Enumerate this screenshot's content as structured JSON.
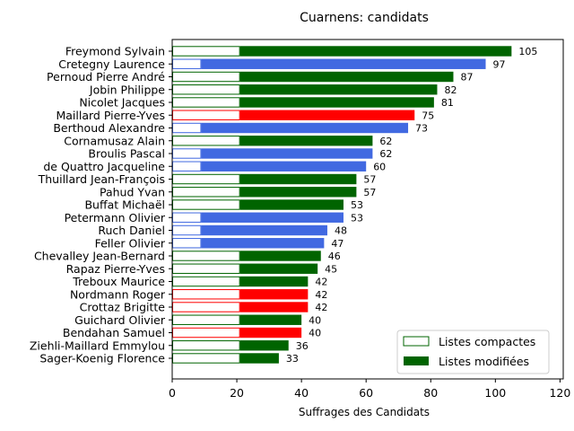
{
  "chart_data": {
    "type": "bar",
    "orientation": "horizontal",
    "title": "Cuarnens: candidats",
    "xlabel": "Suffrages des Candidats",
    "ylabel": "",
    "xlim": [
      0,
      121
    ],
    "xticks": [
      "0",
      "20",
      "40",
      "60",
      "80",
      "100",
      "120"
    ],
    "xtick_values": [
      0,
      20,
      40,
      60,
      80,
      100,
      120
    ],
    "legend_position": "bottom-right",
    "legend": [
      {
        "label": "Listes compactes",
        "style": "outline",
        "color": "#006400"
      },
      {
        "label": "Listes modifiées",
        "style": "filled",
        "color": "#006400"
      }
    ],
    "categories": [
      "Freymond Sylvain",
      "Cretegny Laurence",
      "Pernoud Pierre André",
      "Jobin Philippe",
      "Nicolet Jacques",
      "Maillard Pierre-Yves",
      "Berthoud Alexandre",
      "Cornamusaz Alain",
      "Broulis Pascal",
      "de Quattro Jacqueline",
      "Thuillard Jean-François",
      "Pahud Yvan",
      "Buffat Michaël",
      "Petermann Olivier",
      "Ruch Daniel",
      "Feller Olivier",
      "Chevalley Jean-Bernard",
      "Rapaz Pierre-Yves",
      "Treboux Maurice",
      "Nordmann Roger",
      "Crottaz Brigitte",
      "Guichard Olivier",
      "Bendahan Samuel",
      "Ziehli-Maillard Emmylou",
      "Sager-Koenig Florence"
    ],
    "totals": [
      105,
      97,
      87,
      82,
      81,
      75,
      73,
      62,
      62,
      60,
      57,
      57,
      53,
      53,
      48,
      47,
      46,
      45,
      42,
      42,
      42,
      40,
      40,
      36,
      33
    ],
    "compact": [
      21,
      9,
      21,
      21,
      21,
      21,
      9,
      21,
      9,
      9,
      21,
      21,
      21,
      9,
      9,
      9,
      21,
      21,
      21,
      21,
      21,
      21,
      21,
      21,
      21
    ],
    "colors": [
      "#006400",
      "#4169e1",
      "#006400",
      "#006400",
      "#006400",
      "#ff0000",
      "#4169e1",
      "#006400",
      "#4169e1",
      "#4169e1",
      "#006400",
      "#006400",
      "#006400",
      "#4169e1",
      "#4169e1",
      "#4169e1",
      "#006400",
      "#006400",
      "#006400",
      "#ff0000",
      "#ff0000",
      "#006400",
      "#ff0000",
      "#006400",
      "#006400"
    ],
    "data_labels": [
      "105",
      "97",
      "87",
      "82",
      "81",
      "75",
      "73",
      "62",
      "62",
      "60",
      "57",
      "57",
      "53",
      "53",
      "48",
      "47",
      "46",
      "45",
      "42",
      "42",
      "42",
      "40",
      "40",
      "36",
      "33"
    ]
  }
}
